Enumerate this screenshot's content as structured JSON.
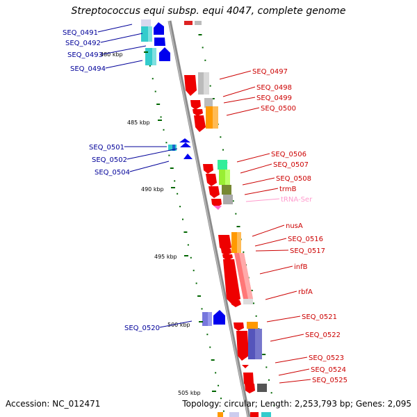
{
  "title": "Streptococcus equi subsp. equi 4047, complete genome",
  "accession": "Accession: NC_012471",
  "topology": "Topology: circular; Length: 2,253,793 bp; Genes: 2,095",
  "colors": {
    "forward_label": "#cc0000",
    "reverse_label": "#000099",
    "trna_label": "#ff99cc",
    "backbone": "#888888",
    "tick": "#006600"
  },
  "scale_labels": [
    "480 kbp",
    "485 kbp",
    "490 kbp",
    "495 kbp",
    "500 kbp",
    "505 kbp"
  ],
  "genes_left": [
    "SEQ_0491",
    "SEQ_0492",
    "SEQ_0493",
    "SEQ_0494",
    "SEQ_0501",
    "SEQ_0502",
    "SEQ_0504",
    "SEQ_0520"
  ],
  "genes_right": [
    "SEQ_0497",
    "SEQ_0498",
    "SEQ_0499",
    "SEQ_0500",
    "SEQ_0506",
    "SEQ_0507",
    "SEQ_0508",
    "trmB",
    "tRNA-Ser",
    "nusA",
    "SEQ_0516",
    "SEQ_0517",
    "infB",
    "rbfA",
    "SEQ_0521",
    "SEQ_0522",
    "SEQ_0523",
    "SEQ_0524",
    "SEQ_0525"
  ]
}
